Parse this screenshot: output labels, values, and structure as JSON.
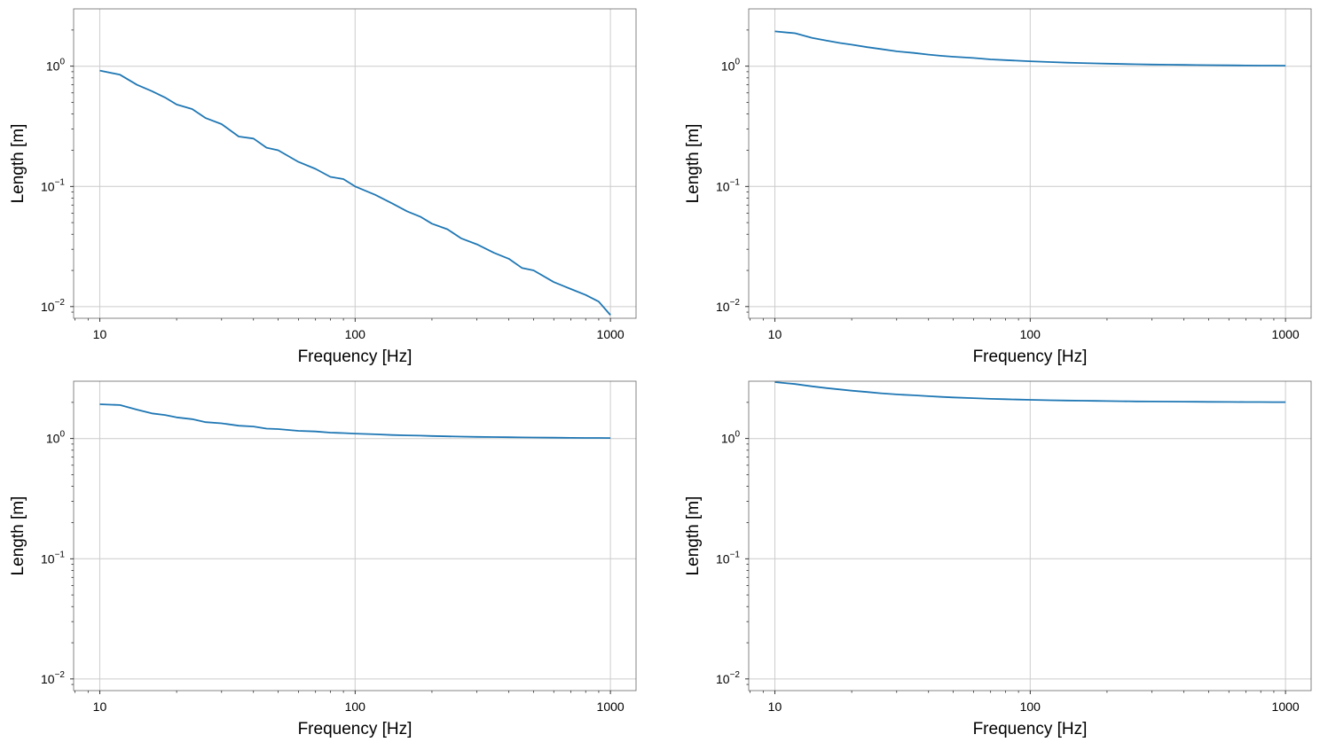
{
  "chart_data": [
    {
      "type": "line",
      "scale": "log-log",
      "xlabel": "Frequency [Hz]",
      "ylabel": "Length [m]",
      "xlim": [
        7.9,
        1260
      ],
      "ylim": [
        0.008,
        3.0
      ],
      "grid": true,
      "color": "#1f77b4",
      "xticks": [
        {
          "value": 10,
          "label": "10"
        },
        {
          "value": 100,
          "label": "100"
        },
        {
          "value": 1000,
          "label": "1000"
        }
      ],
      "yticks": [
        {
          "value": 1,
          "base": "10",
          "exp": "0"
        },
        {
          "value": 0.1,
          "base": "10",
          "exp": "−1"
        },
        {
          "value": 0.01,
          "base": "10",
          "exp": "−2"
        }
      ],
      "x": [
        10,
        12,
        14,
        16,
        18,
        20,
        23,
        26,
        30,
        35,
        40,
        45,
        50,
        60,
        70,
        80,
        90,
        100,
        120,
        140,
        160,
        180,
        200,
        230,
        260,
        300,
        350,
        400,
        450,
        500,
        600,
        700,
        800,
        900,
        1000
      ],
      "y": [
        0.92,
        0.85,
        0.7,
        0.62,
        0.55,
        0.48,
        0.44,
        0.37,
        0.33,
        0.26,
        0.25,
        0.21,
        0.2,
        0.16,
        0.14,
        0.12,
        0.115,
        0.1,
        0.085,
        0.072,
        0.062,
        0.056,
        0.049,
        0.044,
        0.037,
        0.033,
        0.028,
        0.025,
        0.021,
        0.02,
        0.016,
        0.014,
        0.0125,
        0.011,
        0.0085
      ]
    },
    {
      "type": "line",
      "scale": "log-log",
      "xlabel": "Frequency [Hz]",
      "ylabel": "Length [m]",
      "xlim": [
        7.9,
        1260
      ],
      "ylim": [
        0.008,
        3.0
      ],
      "grid": true,
      "color": "#1f77b4",
      "xticks": [
        {
          "value": 10,
          "label": "10"
        },
        {
          "value": 100,
          "label": "100"
        },
        {
          "value": 1000,
          "label": "1000"
        }
      ],
      "yticks": [
        {
          "value": 1,
          "base": "10",
          "exp": "0"
        },
        {
          "value": 0.1,
          "base": "10",
          "exp": "−1"
        },
        {
          "value": 0.01,
          "base": "10",
          "exp": "−2"
        }
      ],
      "x": [
        10,
        12,
        14,
        16,
        18,
        20,
        23,
        26,
        30,
        35,
        40,
        45,
        50,
        60,
        70,
        80,
        90,
        100,
        120,
        140,
        160,
        180,
        200,
        230,
        260,
        300,
        350,
        400,
        450,
        500,
        600,
        700,
        800,
        900,
        1000
      ],
      "y": [
        1.95,
        1.88,
        1.72,
        1.63,
        1.56,
        1.51,
        1.44,
        1.39,
        1.33,
        1.29,
        1.25,
        1.22,
        1.2,
        1.17,
        1.14,
        1.125,
        1.11,
        1.1,
        1.083,
        1.07,
        1.063,
        1.056,
        1.05,
        1.043,
        1.038,
        1.033,
        1.029,
        1.025,
        1.022,
        1.02,
        1.017,
        1.014,
        1.0125,
        1.011,
        1.01
      ]
    },
    {
      "type": "line",
      "scale": "log-log",
      "xlabel": "Frequency [Hz]",
      "ylabel": "Length [m]",
      "xlim": [
        7.9,
        1260
      ],
      "ylim": [
        0.008,
        3.0
      ],
      "grid": true,
      "color": "#1f77b4",
      "xticks": [
        {
          "value": 10,
          "label": "10"
        },
        {
          "value": 100,
          "label": "100"
        },
        {
          "value": 1000,
          "label": "1000"
        }
      ],
      "yticks": [
        {
          "value": 1,
          "base": "10",
          "exp": "0"
        },
        {
          "value": 0.1,
          "base": "10",
          "exp": "−1"
        },
        {
          "value": 0.01,
          "base": "10",
          "exp": "−2"
        }
      ],
      "x": [
        10,
        12,
        14,
        16,
        18,
        20,
        23,
        26,
        30,
        35,
        40,
        45,
        50,
        60,
        70,
        80,
        90,
        100,
        120,
        140,
        160,
        180,
        200,
        230,
        260,
        300,
        350,
        400,
        450,
        500,
        600,
        700,
        800,
        900,
        1000
      ],
      "y": [
        1.93,
        1.9,
        1.74,
        1.62,
        1.57,
        1.5,
        1.45,
        1.37,
        1.34,
        1.28,
        1.26,
        1.21,
        1.2,
        1.16,
        1.145,
        1.12,
        1.11,
        1.1,
        1.085,
        1.07,
        1.062,
        1.057,
        1.05,
        1.044,
        1.038,
        1.033,
        1.029,
        1.025,
        1.022,
        1.02,
        1.017,
        1.014,
        1.0125,
        1.011,
        1.01
      ]
    },
    {
      "type": "line",
      "scale": "log-log",
      "xlabel": "Frequency [Hz]",
      "ylabel": "Length [m]",
      "xlim": [
        7.9,
        1260
      ],
      "ylim": [
        0.008,
        3.0
      ],
      "grid": true,
      "color": "#1f77b4",
      "xticks": [
        {
          "value": 10,
          "label": "10"
        },
        {
          "value": 100,
          "label": "100"
        },
        {
          "value": 1000,
          "label": "1000"
        }
      ],
      "yticks": [
        {
          "value": 1,
          "base": "10",
          "exp": "0"
        },
        {
          "value": 0.1,
          "base": "10",
          "exp": "−1"
        },
        {
          "value": 0.01,
          "base": "10",
          "exp": "−2"
        }
      ],
      "x": [
        10,
        12,
        14,
        16,
        18,
        20,
        23,
        26,
        30,
        35,
        40,
        45,
        50,
        60,
        70,
        80,
        90,
        100,
        120,
        140,
        160,
        180,
        200,
        230,
        260,
        300,
        350,
        400,
        450,
        500,
        600,
        700,
        800,
        900,
        1000
      ],
      "y": [
        2.95,
        2.84,
        2.72,
        2.63,
        2.56,
        2.5,
        2.44,
        2.38,
        2.33,
        2.29,
        2.25,
        2.22,
        2.2,
        2.17,
        2.14,
        2.125,
        2.11,
        2.1,
        2.083,
        2.07,
        2.063,
        2.056,
        2.05,
        2.043,
        2.038,
        2.033,
        2.029,
        2.025,
        2.022,
        2.02,
        2.017,
        2.014,
        2.0125,
        2.011,
        2.01
      ]
    }
  ]
}
